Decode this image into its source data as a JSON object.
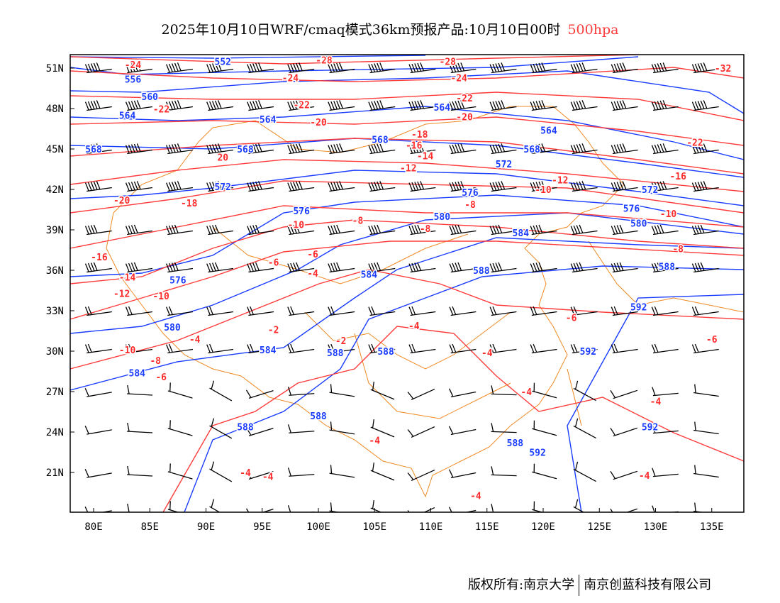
{
  "title": {
    "main": "2025年10月10日WRF/cmaq模式36km预报产品:10月10日00时",
    "level": "500hpa"
  },
  "footer": {
    "left": "版权所有:南京大学",
    "right": "南京创蓝科技有限公司"
  },
  "axes": {
    "lon_ticks": [
      "80E",
      "85E",
      "90E",
      "95E",
      "100E",
      "105E",
      "110E",
      "115E",
      "120E",
      "125E",
      "130E",
      "135E"
    ],
    "lat_ticks": [
      "51N",
      "48N",
      "45N",
      "42N",
      "39N",
      "36N",
      "33N",
      "30N",
      "27N",
      "24N",
      "21N"
    ]
  },
  "colors": {
    "height": "#1a3cff",
    "temperature": "#ff3b3b",
    "boundary": "#f08a24",
    "barb": "#000000"
  },
  "height_labels": [
    {
      "t": "552",
      "lon": 91.5,
      "lat": 51.5
    },
    {
      "t": "556",
      "lon": 83.5,
      "lat": 50.5
    },
    {
      "t": "560",
      "lon": 85,
      "lat": 48.9
    },
    {
      "t": "564",
      "lon": 83,
      "lat": 47.5
    },
    {
      "t": "564",
      "lon": 95.5,
      "lat": 47.2
    },
    {
      "t": "564",
      "lon": 111,
      "lat": 48.1
    },
    {
      "t": "564",
      "lon": 120.5,
      "lat": 46.4
    },
    {
      "t": "568",
      "lon": 80,
      "lat": 45
    },
    {
      "t": "568",
      "lon": 93.5,
      "lat": 45
    },
    {
      "t": "568",
      "lon": 107,
      "lat": 45.7
    },
    {
      "t": "568",
      "lon": 119,
      "lat": 45
    },
    {
      "t": "572",
      "lon": 91.5,
      "lat": 42.2
    },
    {
      "t": "572",
      "lon": 116.5,
      "lat": 43.9
    },
    {
      "t": "572",
      "lon": 129.5,
      "lat": 42
    },
    {
      "t": "576",
      "lon": 98.5,
      "lat": 40.1
    },
    {
      "t": "576",
      "lon": 113.5,
      "lat": 41.8
    },
    {
      "t": "576",
      "lon": 130,
      "lat": 40.5
    },
    {
      "t": "576",
      "lon": 87.5,
      "lat": 35.3
    },
    {
      "t": "580",
      "lon": 111,
      "lat": 40
    },
    {
      "t": "580",
      "lon": 128.5,
      "lat": 39.5
    },
    {
      "t": "580",
      "lon": 87,
      "lat": 31.8
    },
    {
      "t": "584",
      "lon": 118,
      "lat": 38.8
    },
    {
      "t": "584",
      "lon": 104.5,
      "lat": 35.7
    },
    {
      "t": "584",
      "lon": 95.5,
      "lat": 30.1
    },
    {
      "t": "584",
      "lon": 85,
      "lat": 28.4
    },
    {
      "t": "588",
      "lon": 131,
      "lat": 36.3
    },
    {
      "t": "588",
      "lon": 114.5,
      "lat": 36
    },
    {
      "t": "588",
      "lon": 101.5,
      "lat": 29.9
    },
    {
      "t": "588",
      "lon": 106,
      "lat": 30
    },
    {
      "t": "588",
      "lon": 100,
      "lat": 25.2
    },
    {
      "t": "588",
      "lon": 93.5,
      "lat": 24.4
    },
    {
      "t": "588",
      "lon": 117.5,
      "lat": 23.2
    },
    {
      "t": "592",
      "lon": 128.5,
      "lat": 33.3
    },
    {
      "t": "592",
      "lon": 124,
      "lat": 30
    },
    {
      "t": "592",
      "lon": 129.5,
      "lat": 24.4
    },
    {
      "t": "592",
      "lon": 119.5,
      "lat": 22.5
    }
  ],
  "temp_labels": [
    {
      "t": "-28",
      "lon": 100.5,
      "lat": 51.6
    },
    {
      "t": "-28",
      "lon": 111.5,
      "lat": 51.5
    },
    {
      "t": "-24",
      "lon": 83.5,
      "lat": 51
    },
    {
      "t": "-24",
      "lon": 97.5,
      "lat": 50.3
    },
    {
      "t": "-24",
      "lon": 112.5,
      "lat": 50.3
    },
    {
      "t": "-22",
      "lon": 83.5,
      "lat": 48.3
    },
    {
      "t": "-22",
      "lon": 98.5,
      "lat": 48.3
    },
    {
      "t": "-22",
      "lon": 113,
      "lat": 48.8
    },
    {
      "t": "-20",
      "lon": 100,
      "lat": 47
    },
    {
      "t": "-20",
      "lon": 113,
      "lat": 47.4
    },
    {
      "t": "-18",
      "lon": 108.5,
      "lat": 46.1
    },
    {
      "t": "-16",
      "lon": 108.5,
      "lat": 45.3
    },
    {
      "t": "-14",
      "lon": 109.5,
      "lat": 44.5
    },
    {
      "t": "-12",
      "lon": 108,
      "lat": 43.6
    },
    {
      "t": "-10",
      "lon": 120,
      "lat": 42
    },
    {
      "t": "-12",
      "lon": 121.5,
      "lat": 42.7
    },
    {
      "t": "-16",
      "lon": 132,
      "lat": 43
    },
    {
      "t": "-22",
      "lon": 133.5,
      "lat": 45.5
    },
    {
      "t": "-32",
      "lon": 136,
      "lat": 51
    },
    {
      "t": "20",
      "lon": 91.5,
      "lat": 44.4
    },
    {
      "t": "-20",
      "lon": 82.5,
      "lat": 41.2
    },
    {
      "t": "-18",
      "lon": 88.5,
      "lat": 41
    },
    {
      "t": "-10",
      "lon": 98,
      "lat": 39.4
    },
    {
      "t": "-8",
      "lon": 103.5,
      "lat": 39.7
    },
    {
      "t": "-8",
      "lon": 113.5,
      "lat": 40.9
    },
    {
      "t": "-8",
      "lon": 109.5,
      "lat": 39.1
    },
    {
      "t": "-10",
      "lon": 130,
      "lat": 40.2
    },
    {
      "t": "-8",
      "lon": 132,
      "lat": 37.6
    },
    {
      "t": "-16",
      "lon": 80.5,
      "lat": 37
    },
    {
      "t": "-14",
      "lon": 83,
      "lat": 35.5
    },
    {
      "t": "-12",
      "lon": 82.5,
      "lat": 34.3
    },
    {
      "t": "-10",
      "lon": 86,
      "lat": 34.1
    },
    {
      "t": "-6",
      "lon": 96,
      "lat": 36.6
    },
    {
      "t": "-6",
      "lon": 99.5,
      "lat": 37.2
    },
    {
      "t": "-4",
      "lon": 99.5,
      "lat": 35.8
    },
    {
      "t": "-4",
      "lon": 89,
      "lat": 30.9
    },
    {
      "t": "-2",
      "lon": 96,
      "lat": 31.6
    },
    {
      "t": "-2",
      "lon": 102,
      "lat": 30.8
    },
    {
      "t": "-4",
      "lon": 108.5,
      "lat": 31.9
    },
    {
      "t": "-6",
      "lon": 122.5,
      "lat": 32.5
    },
    {
      "t": "-6",
      "lon": 135,
      "lat": 30.9
    },
    {
      "t": "-4",
      "lon": 115,
      "lat": 29.9
    },
    {
      "t": "-8",
      "lon": 85.5,
      "lat": 29
    },
    {
      "t": "-10",
      "lon": 83,
      "lat": 30.1
    },
    {
      "t": "-6",
      "lon": 85.5,
      "lat": 28.1
    },
    {
      "t": "-4",
      "lon": 118.5,
      "lat": 27
    },
    {
      "t": "-4",
      "lon": 130,
      "lat": 26.3
    },
    {
      "t": "-4",
      "lon": 105,
      "lat": 23.4
    },
    {
      "t": "-4",
      "lon": 93.5,
      "lat": 21
    },
    {
      "t": "-4",
      "lon": 95.5,
      "lat": 20.7
    },
    {
      "t": "-4",
      "lon": 114,
      "lat": 19.3
    },
    {
      "t": "-4",
      "lon": 129,
      "lat": 20.8
    }
  ]
}
